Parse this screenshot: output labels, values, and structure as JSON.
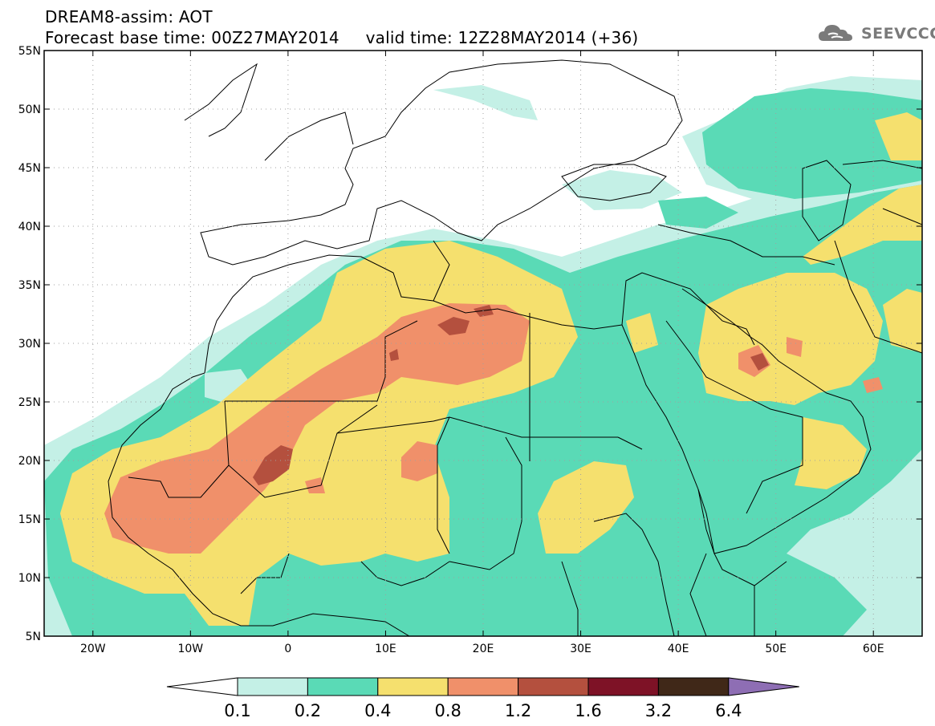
{
  "header": {
    "title_line1": "DREAM8-assim: AOT",
    "title_line2": "Forecast base time: 00Z27MAY2014     valid time: 12Z28MAY2014 (+36)",
    "logo_text": "SEEVCCC"
  },
  "map": {
    "lon_range": [
      -25,
      65
    ],
    "lat_range": [
      5,
      55
    ],
    "lat_ticks": [
      "5N",
      "10N",
      "15N",
      "20N",
      "25N",
      "30N",
      "35N",
      "40N",
      "45N",
      "50N",
      "55N"
    ],
    "lon_ticks": [
      "20W",
      "10W",
      "0",
      "10E",
      "20E",
      "30E",
      "40E",
      "50E",
      "60E"
    ],
    "grid": true
  },
  "colorbar": {
    "labels": [
      "0.1",
      "0.2",
      "0.4",
      "0.8",
      "1.2",
      "1.6",
      "3.2",
      "6.4"
    ],
    "colors": [
      "#ffffff",
      "#c4f0e6",
      "#5adab6",
      "#f5e06e",
      "#f0906a",
      "#b4503e",
      "#7e1226",
      "#402818",
      "#8e6eb4"
    ]
  }
}
